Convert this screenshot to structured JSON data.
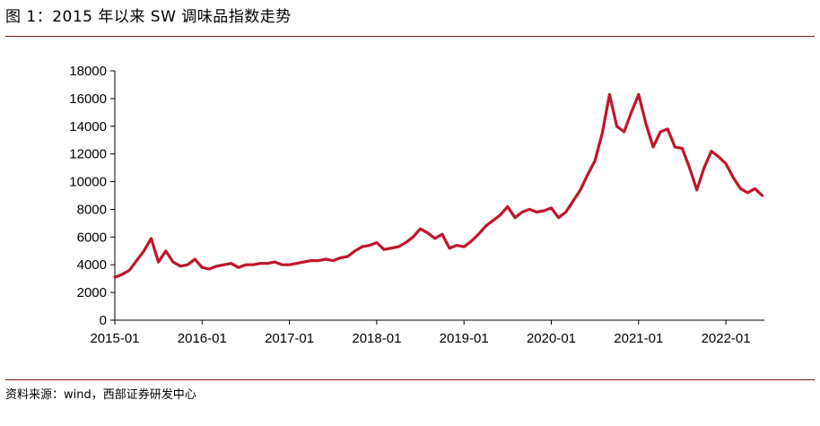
{
  "figure_title": "图 1：2015 年以来 SW 调味品指数走势",
  "source_note": "资料来源：wind，西部证券研发中心",
  "chart_data": {
    "type": "line",
    "title": "",
    "xlabel": "",
    "ylabel": "",
    "ylim": [
      0,
      18000
    ],
    "yticks": [
      "0",
      "2000",
      "4000",
      "6000",
      "8000",
      "10000",
      "12000",
      "14000",
      "16000",
      "18000"
    ],
    "xticks": [
      "2015-01",
      "2016-01",
      "2017-01",
      "2018-01",
      "2019-01",
      "2020-01",
      "2021-01",
      "2022-01"
    ],
    "grid": false,
    "legend": "none",
    "line_color": "#c0152a",
    "series": [
      {
        "x": [
          "2015-01",
          "2015-02",
          "2015-03",
          "2015-04",
          "2015-05",
          "2015-06",
          "2015-07",
          "2015-08",
          "2015-09",
          "2015-10",
          "2015-11",
          "2015-12",
          "2016-01",
          "2016-02",
          "2016-03",
          "2016-04",
          "2016-05",
          "2016-06",
          "2016-07",
          "2016-08",
          "2016-09",
          "2016-10",
          "2016-11",
          "2016-12",
          "2017-01",
          "2017-02",
          "2017-03",
          "2017-04",
          "2017-05",
          "2017-06",
          "2017-07",
          "2017-08",
          "2017-09",
          "2017-10",
          "2017-11",
          "2017-12",
          "2018-01",
          "2018-02",
          "2018-03",
          "2018-04",
          "2018-05",
          "2018-06",
          "2018-07",
          "2018-08",
          "2018-09",
          "2018-10",
          "2018-11",
          "2018-12",
          "2019-01",
          "2019-02",
          "2019-03",
          "2019-04",
          "2019-05",
          "2019-06",
          "2019-07",
          "2019-08",
          "2019-09",
          "2019-10",
          "2019-11",
          "2019-12",
          "2020-01",
          "2020-02",
          "2020-03",
          "2020-04",
          "2020-05",
          "2020-06",
          "2020-07",
          "2020-08",
          "2020-09",
          "2020-10",
          "2020-11",
          "2020-12",
          "2021-01",
          "2021-02",
          "2021-03",
          "2021-04",
          "2021-05",
          "2021-06",
          "2021-07",
          "2021-08",
          "2021-09",
          "2021-10",
          "2021-11",
          "2021-12",
          "2022-01",
          "2022-02",
          "2022-03",
          "2022-04",
          "2022-05",
          "2022-06"
        ],
        "values": [
          3100,
          3300,
          3600,
          4300,
          5000,
          5900,
          4200,
          5000,
          4200,
          3900,
          4000,
          4400,
          3800,
          3700,
          3900,
          4000,
          4100,
          3800,
          4000,
          4000,
          4100,
          4100,
          4200,
          4000,
          4000,
          4100,
          4200,
          4300,
          4300,
          4400,
          4300,
          4500,
          4600,
          5000,
          5300,
          5400,
          5600,
          5100,
          5200,
          5300,
          5600,
          6000,
          6600,
          6300,
          5900,
          6200,
          5200,
          5400,
          5300,
          5700,
          6200,
          6800,
          7200,
          7600,
          8200,
          7400,
          7800,
          8000,
          7800,
          7900,
          8100,
          7400,
          7800,
          8600,
          9400,
          10500,
          11500,
          13500,
          16300,
          14000,
          13600,
          15000,
          16300,
          14200,
          12500,
          13600,
          13800,
          12500,
          12400,
          11000,
          9400,
          11000,
          12200,
          11800,
          11300,
          10300,
          9500,
          9200,
          9500,
          9000
        ]
      }
    ]
  }
}
